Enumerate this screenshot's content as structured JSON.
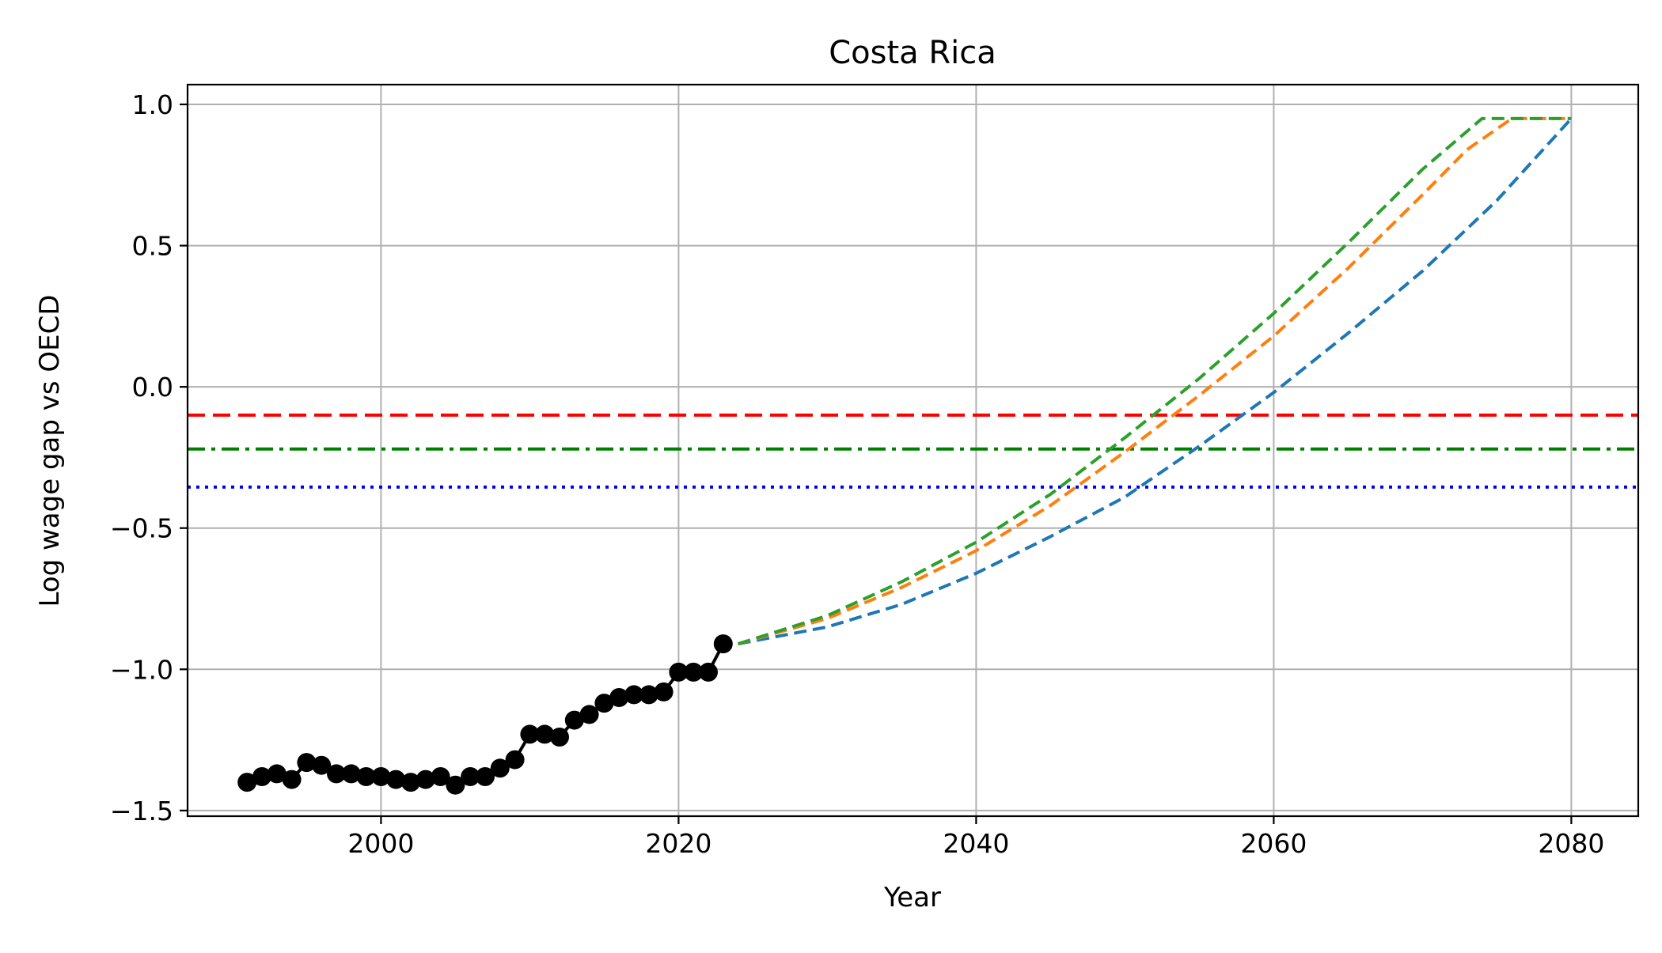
{
  "chart_data": {
    "type": "line",
    "title": "Costa Rica",
    "xlabel": "Year",
    "ylabel": "Log wage gap vs OECD",
    "xlim": [
      1987,
      2084.5
    ],
    "ylim": [
      -1.52,
      1.07
    ],
    "xticks": [
      {
        "value": 2000,
        "label": "2000"
      },
      {
        "value": 2020,
        "label": "2020"
      },
      {
        "value": 2040,
        "label": "2040"
      },
      {
        "value": 2060,
        "label": "2060"
      },
      {
        "value": 2080,
        "label": "2080"
      }
    ],
    "yticks": [
      {
        "value": 1.0,
        "label": "1.0"
      },
      {
        "value": 0.5,
        "label": "0.5"
      },
      {
        "value": 0.0,
        "label": "0.0"
      },
      {
        "value": -0.5,
        "label": "−0.5"
      },
      {
        "value": -1.0,
        "label": "−1.0"
      },
      {
        "value": -1.5,
        "label": "−1.5"
      }
    ],
    "grid": true,
    "historical": {
      "color": "#000000",
      "x": [
        1991,
        1992,
        1993,
        1994,
        1995,
        1996,
        1997,
        1998,
        1999,
        2000,
        2001,
        2002,
        2003,
        2004,
        2005,
        2006,
        2007,
        2008,
        2009,
        2010,
        2011,
        2012,
        2013,
        2014,
        2015,
        2016,
        2017,
        2018,
        2019,
        2020,
        2021,
        2022,
        2023
      ],
      "y": [
        -1.4,
        -1.38,
        -1.37,
        -1.39,
        -1.33,
        -1.34,
        -1.37,
        -1.37,
        -1.38,
        -1.38,
        -1.39,
        -1.4,
        -1.39,
        -1.38,
        -1.41,
        -1.38,
        -1.38,
        -1.35,
        -1.32,
        -1.23,
        -1.23,
        -1.24,
        -1.18,
        -1.16,
        -1.12,
        -1.1,
        -1.09,
        -1.09,
        -1.08,
        -1.01,
        -1.01,
        -1.01,
        -0.91
      ]
    },
    "projections": [
      {
        "color": "#1f77b4",
        "x": [
          2024,
          2030,
          2035,
          2040,
          2045,
          2050,
          2055,
          2060,
          2065,
          2070,
          2075,
          2080
        ],
        "y": [
          -0.91,
          -0.85,
          -0.77,
          -0.66,
          -0.53,
          -0.39,
          -0.21,
          -0.02,
          0.19,
          0.41,
          0.66,
          0.95
        ]
      },
      {
        "color": "#ff7f0e",
        "x": [
          2024,
          2030,
          2035,
          2040,
          2045,
          2050,
          2055,
          2060,
          2065,
          2070,
          2073,
          2076,
          2080
        ],
        "y": [
          -0.91,
          -0.82,
          -0.71,
          -0.58,
          -0.42,
          -0.23,
          -0.03,
          0.18,
          0.42,
          0.68,
          0.84,
          0.95,
          0.95
        ]
      },
      {
        "color": "#2ca02c",
        "x": [
          2024,
          2030,
          2035,
          2040,
          2045,
          2050,
          2055,
          2060,
          2065,
          2070,
          2074,
          2080
        ],
        "y": [
          -0.91,
          -0.81,
          -0.69,
          -0.55,
          -0.38,
          -0.18,
          0.03,
          0.26,
          0.51,
          0.77,
          0.95,
          0.95
        ]
      }
    ],
    "reference_lines": [
      {
        "y": -0.1,
        "color": "#ff0000",
        "style": "dashed"
      },
      {
        "y": -0.22,
        "color": "#008000",
        "style": "dashdot"
      },
      {
        "y": -0.355,
        "color": "#0000ff",
        "style": "dotted"
      }
    ]
  }
}
